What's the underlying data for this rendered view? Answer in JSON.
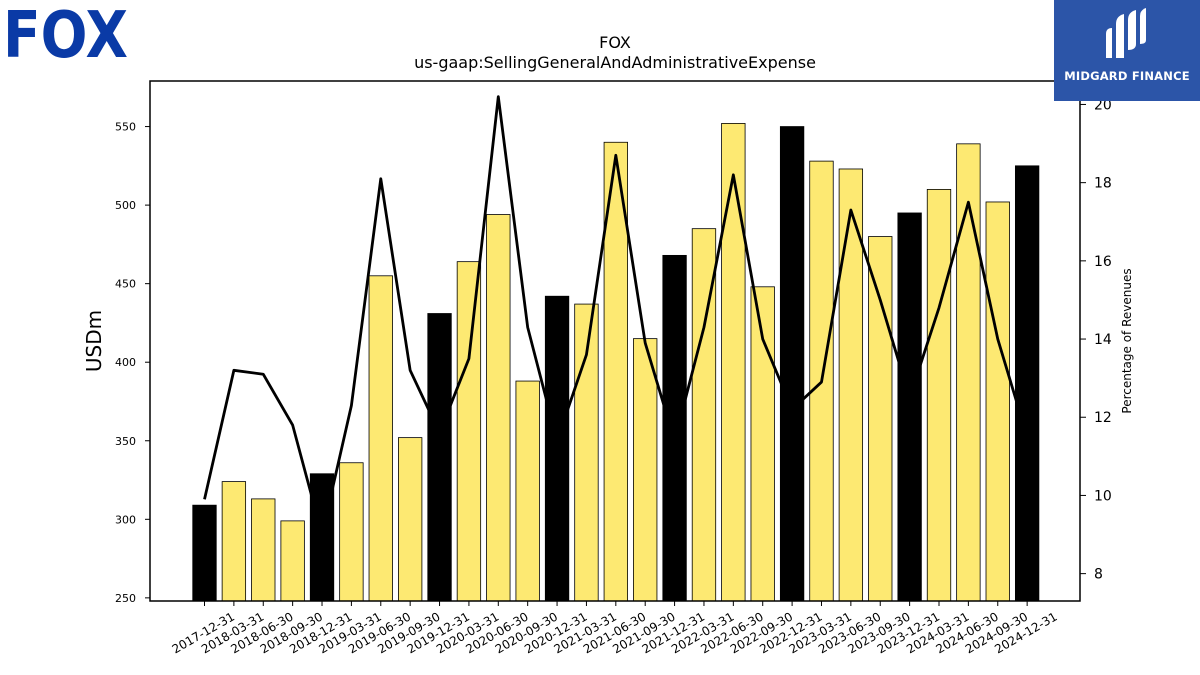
{
  "brand": {
    "company_logo_text": "FOX",
    "publisher_name": "MIDGARD FINANCE",
    "fox_color": "#0a3aa6",
    "publisher_bg": "#2c55a8"
  },
  "chart_data": {
    "type": "bar",
    "title": "FOX",
    "subtitle": "us-gaap:SellingGeneralAndAdministrativeExpense",
    "ylabel": "USDm",
    "y2label": "Percentage of Revenues",
    "ylim": [
      248,
      579
    ],
    "y2lim": [
      7.3,
      20.6
    ],
    "yticks": [
      250,
      300,
      350,
      400,
      450,
      500,
      550
    ],
    "y2ticks": [
      8,
      10,
      12,
      14,
      16,
      18,
      20
    ],
    "grid": false,
    "bar_colors": {
      "q2_q4": "#fde972",
      "q1_fiscal_year_end": "#000000"
    },
    "line_color": "#000000",
    "categories": [
      "2017-12-31",
      "2018-03-31",
      "2018-06-30",
      "2018-09-30",
      "2018-12-31",
      "2019-03-31",
      "2019-06-30",
      "2019-09-30",
      "2019-12-31",
      "2020-03-31",
      "2020-06-30",
      "2020-09-30",
      "2020-12-31",
      "2021-03-31",
      "2021-06-30",
      "2021-09-30",
      "2021-12-31",
      "2022-03-31",
      "2022-06-30",
      "2022-09-30",
      "2022-12-31",
      "2023-03-31",
      "2023-06-30",
      "2023-09-30",
      "2023-12-31",
      "2024-03-31",
      "2024-06-30",
      "2024-09-30",
      "2024-12-31"
    ],
    "series": [
      {
        "kind": "bar",
        "values": [
          309,
          324,
          313,
          299,
          329,
          336,
          455,
          352,
          431,
          464,
          494,
          388,
          442,
          437,
          540,
          415,
          468,
          485,
          552,
          448,
          550,
          528,
          523,
          480,
          495,
          510,
          539,
          502,
          525
        ],
        "dark": [
          true,
          false,
          false,
          false,
          true,
          false,
          false,
          false,
          true,
          false,
          false,
          false,
          true,
          false,
          false,
          false,
          true,
          false,
          false,
          false,
          true,
          false,
          false,
          false,
          true,
          false,
          false,
          false,
          true
        ]
      },
      {
        "kind": "line",
        "axis": "right",
        "values": [
          9.9,
          13.2,
          13.1,
          11.8,
          9.0,
          12.3,
          18.1,
          13.2,
          11.6,
          13.5,
          20.2,
          14.3,
          11.4,
          13.6,
          18.7,
          13.9,
          11.4,
          14.3,
          18.2,
          14.0,
          12.2,
          12.9,
          17.3,
          15.0,
          12.5,
          14.8,
          17.5,
          14.0,
          11.5
        ]
      }
    ]
  }
}
